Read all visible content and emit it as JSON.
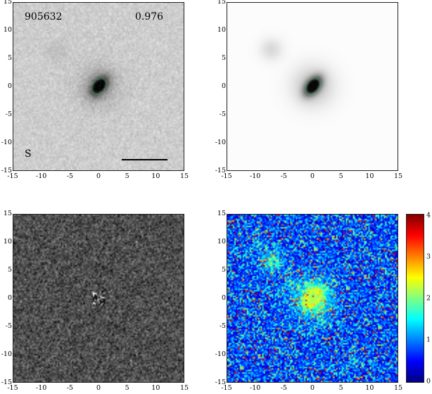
{
  "figure": {
    "object_id": "905632",
    "redshift_label": "0.976",
    "panel_label": "S",
    "axis_range": [
      -15,
      15
    ],
    "x_ticks": [
      "-15",
      "-10",
      "-5",
      "0",
      "5",
      "10",
      "15"
    ],
    "y_ticks": [
      "15",
      "10",
      "5",
      "0",
      "-5",
      "-10",
      "-15"
    ],
    "colorbar_ticks": [
      "4",
      "3",
      "2",
      "1",
      "0"
    ],
    "colorbar_range": [
      0,
      4
    ],
    "colorbar_colors": [
      "#000080",
      "#0000ff",
      "#0080ff",
      "#00ffff",
      "#80ff80",
      "#ffff00",
      "#ff8000",
      "#ff0000",
      "#800000"
    ],
    "panels": [
      {
        "name": "observed-image",
        "kind": "observed"
      },
      {
        "name": "model-image",
        "kind": "model"
      },
      {
        "name": "residual-image",
        "kind": "residual"
      },
      {
        "name": "chi-map-image",
        "kind": "chi"
      }
    ]
  }
}
